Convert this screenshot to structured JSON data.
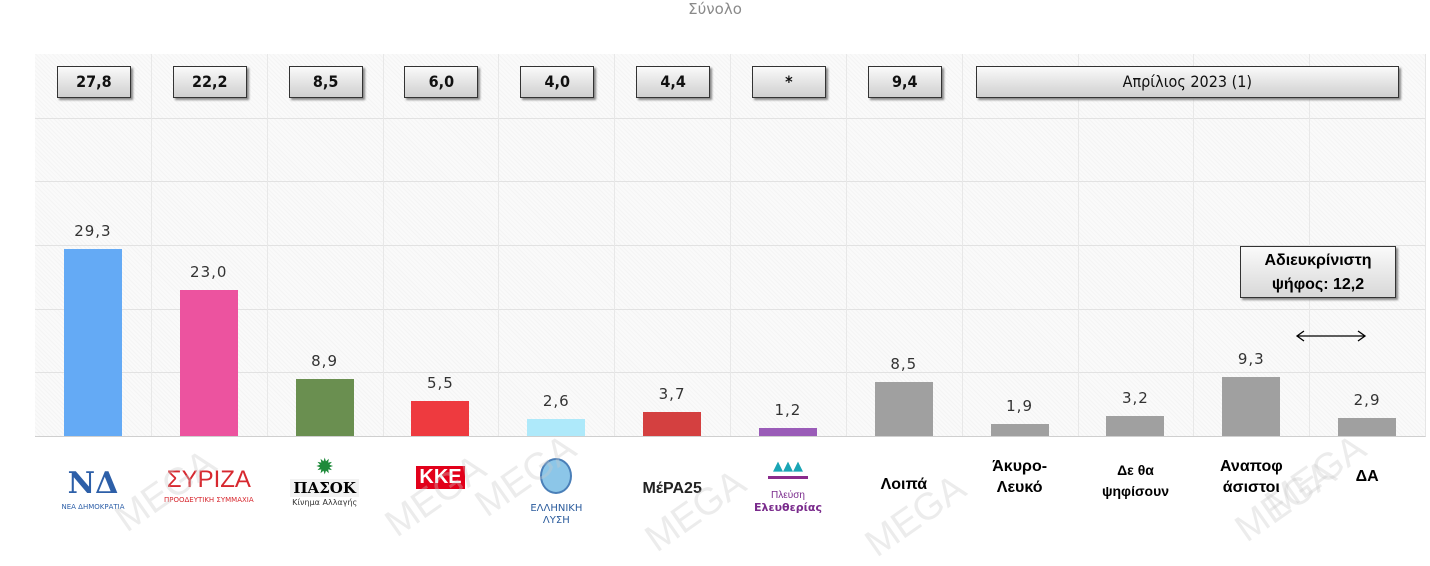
{
  "chart_data": {
    "type": "bar",
    "title": "Σύνολο",
    "categories": [
      "ΝΔ",
      "ΣΥΡΙΖΑ",
      "ΠΑΣΟΚ",
      "ΚΚΕ",
      "Ελληνική Λύση",
      "ΜέΡΑ25",
      "Πλεύση Ελευθερίας",
      "Λοιπά",
      "Άκυρο-Λευκό",
      "Δε θα ψηφίσουν",
      "Αναποφ άσιστοι",
      "ΔΑ"
    ],
    "values": [
      29.3,
      23.0,
      8.9,
      5.5,
      2.6,
      3.7,
      1.2,
      8.5,
      1.9,
      3.2,
      9.3,
      2.9
    ],
    "data_labels": [
      "29,3",
      "23,0",
      "8,9",
      "5,5",
      "2,6",
      "3,7",
      "1,2",
      "8,5",
      "1,9",
      "3,2",
      "9,3",
      "2,9"
    ],
    "colors": [
      "#64aaf5",
      "#ec539f",
      "#6a8f50",
      "#ee3a3f",
      "#aee9fa",
      "#d44040",
      "#9a5cb8",
      "#a0a0a0",
      "#a0a0a0",
      "#a0a0a0",
      "#a0a0a0",
      "#a0a0a0"
    ],
    "ylim": [
      0,
      60
    ],
    "grid": true,
    "comparison": {
      "label": "Απρίλιος 2023 (1)",
      "values": [
        "27,8",
        "22,2",
        "8,5",
        "6,0",
        "4,0",
        "4,4",
        "*",
        "9,4"
      ]
    },
    "annotation": {
      "line1": "Αδιευκρίνιστη",
      "line2": "ψήφος: 12,2"
    }
  },
  "logos": [
    {
      "text": "ΝΔ",
      "sub": "ΝΕΑ ΔΗΜΟΚΡΑΤΙΑ"
    },
    {
      "text": "ΣΥΡΙΖΑ",
      "sub": "ΠΡΟΟΔΕΥΤΙΚΗ ΣΥΜΜΑΧΙΑ"
    },
    {
      "text": "ΠΑΣΟΚ",
      "sub": "Κίνημα Αλλαγής"
    },
    {
      "text": "ΚΚΕ",
      "sub": ""
    },
    {
      "text": "ΕΛΛΗΝΙΚΗ",
      "sub": "ΛΥΣΗ"
    },
    {
      "text": "ΜέΡΑ25",
      "sub": ""
    },
    {
      "text": "Πλεύση",
      "sub": "Ελευθερίας"
    }
  ],
  "text_labels": [
    "Λοιπά",
    [
      "Άκυρο-",
      "Λευκό"
    ],
    [
      "Δε θα",
      "ψηφίσουν"
    ],
    [
      "Αναποφ",
      "άσιστοι"
    ],
    "ΔΑ"
  ],
  "watermark": "MEGA"
}
